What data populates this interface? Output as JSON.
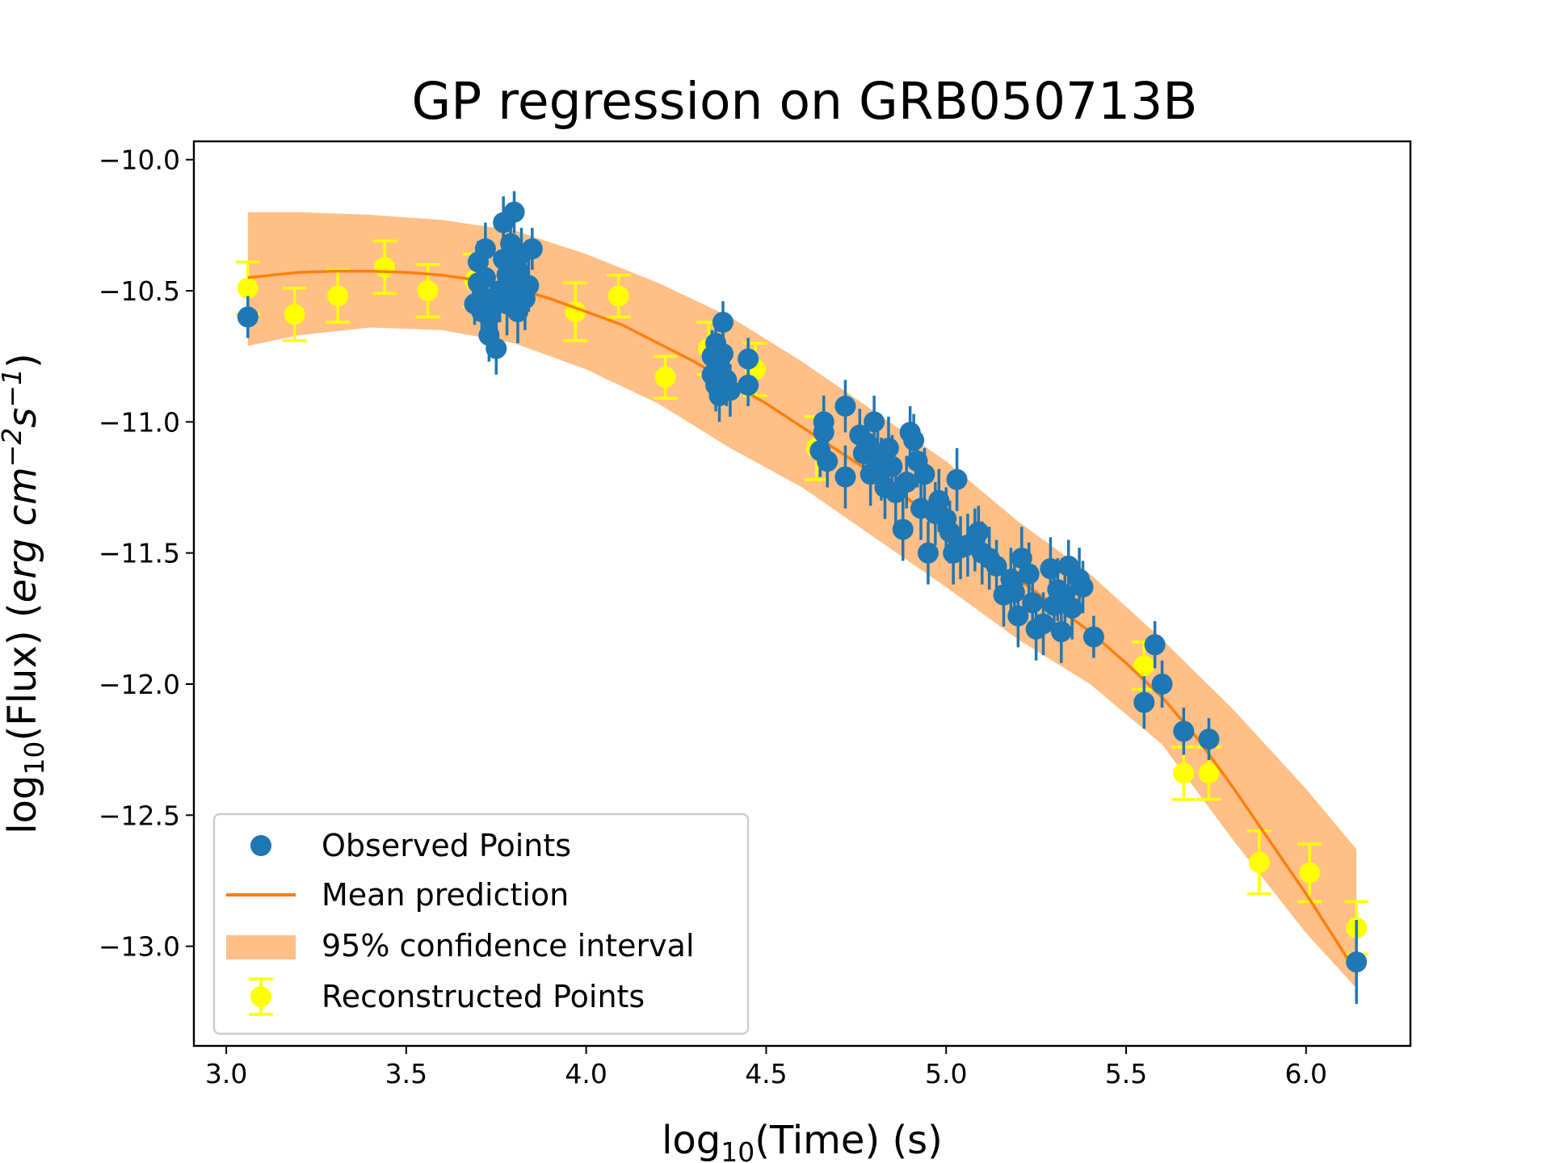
{
  "chart_data": {
    "type": "scatter",
    "title": "GP regression on GRB050713B",
    "xlabel": "log10(Time) (s)",
    "ylabel": "log10(Flux) (erg cm^-2 s^-1)",
    "xlabel_parts": {
      "pre": "log",
      "sub": "10",
      "post": "(Time) (s)"
    },
    "ylabel_parts": {
      "pre": "log",
      "sub": "10",
      "mid": "(Flux) (",
      "unit": "erg cm",
      "exp1": "−2",
      "s": "s",
      "exp2": "−1",
      "end": ")"
    },
    "xlim": [
      2.91,
      6.29
    ],
    "ylim": [
      -13.38,
      -9.93
    ],
    "xticks": [
      3.0,
      3.5,
      4.0,
      4.5,
      5.0,
      5.5,
      6.0
    ],
    "xtick_labels": [
      "3.0",
      "3.5",
      "4.0",
      "4.5",
      "5.0",
      "5.5",
      "6.0"
    ],
    "yticks": [
      -10.0,
      -10.5,
      -11.0,
      -11.5,
      -12.0,
      -12.5,
      -13.0
    ],
    "ytick_labels": [
      "−10.0",
      "−10.5",
      "−11.0",
      "−11.5",
      "−12.0",
      "−12.5",
      "−13.0"
    ],
    "legend_position": "lower-left",
    "colors": {
      "observed": "#1f77b4",
      "mean": "#ff7f0e",
      "band": "#ffbf86",
      "reconstructed": "#ffff00"
    },
    "series": [
      {
        "name": "Mean prediction",
        "kind": "line",
        "x": [
          3.06,
          3.2,
          3.3,
          3.4,
          3.5,
          3.6,
          3.7,
          3.8,
          3.9,
          4.0,
          4.1,
          4.2,
          4.3,
          4.4,
          4.5,
          4.6,
          4.7,
          4.8,
          4.9,
          5.0,
          5.1,
          5.2,
          5.3,
          5.4,
          5.5,
          5.6,
          5.7,
          5.8,
          5.9,
          6.0,
          6.14
        ],
        "y": [
          -10.45,
          -10.43,
          -10.425,
          -10.425,
          -10.43,
          -10.44,
          -10.46,
          -10.49,
          -10.53,
          -10.58,
          -10.63,
          -10.7,
          -10.77,
          -10.85,
          -10.93,
          -11.02,
          -11.11,
          -11.2,
          -11.3,
          -11.4,
          -11.5,
          -11.6,
          -11.7,
          -11.8,
          -11.92,
          -12.05,
          -12.21,
          -12.4,
          -12.6,
          -12.8,
          -13.1
        ]
      },
      {
        "name": "95% confidence interval",
        "kind": "band",
        "x": [
          3.06,
          3.2,
          3.4,
          3.6,
          3.8,
          4.0,
          4.2,
          4.4,
          4.6,
          4.8,
          5.0,
          5.2,
          5.4,
          5.6,
          5.8,
          6.0,
          6.14
        ],
        "upper": [
          -10.2,
          -10.2,
          -10.21,
          -10.23,
          -10.27,
          -10.36,
          -10.47,
          -10.6,
          -10.77,
          -10.96,
          -11.15,
          -11.38,
          -11.58,
          -11.83,
          -12.1,
          -12.4,
          -12.63
        ],
        "lower": [
          -10.71,
          -10.67,
          -10.64,
          -10.65,
          -10.7,
          -10.8,
          -10.93,
          -11.1,
          -11.25,
          -11.44,
          -11.63,
          -11.83,
          -12.0,
          -12.23,
          -12.6,
          -12.95,
          -13.16
        ]
      },
      {
        "name": "Reconstructed Points",
        "kind": "errorbar",
        "x": [
          3.06,
          3.19,
          3.31,
          3.44,
          3.56,
          3.69,
          3.97,
          4.09,
          4.22,
          4.34,
          4.47,
          4.64,
          5.55,
          5.66,
          5.73,
          5.87,
          6.01,
          6.14
        ],
        "y": [
          -10.49,
          -10.59,
          -10.52,
          -10.41,
          -10.5,
          -10.46,
          -10.58,
          -10.52,
          -10.83,
          -10.72,
          -10.8,
          -11.1,
          -11.93,
          -12.34,
          -12.34,
          -12.68,
          -12.72,
          -12.93
        ],
        "err": [
          0.1,
          0.1,
          0.1,
          0.1,
          0.1,
          0.1,
          0.11,
          0.08,
          0.08,
          0.1,
          0.1,
          0.12,
          0.09,
          0.1,
          0.1,
          0.12,
          0.11,
          0.1
        ]
      },
      {
        "name": "Observed Points",
        "kind": "errorbar",
        "x": [
          3.06,
          3.69,
          3.7,
          3.7,
          3.71,
          3.71,
          3.72,
          3.72,
          3.73,
          3.73,
          3.74,
          3.75,
          3.76,
          3.77,
          3.77,
          3.78,
          3.78,
          3.79,
          3.8,
          3.8,
          3.81,
          3.81,
          3.82,
          3.83,
          3.84,
          3.85,
          4.35,
          4.35,
          4.36,
          4.36,
          4.37,
          4.37,
          4.38,
          4.38,
          4.39,
          4.4,
          4.45,
          4.45,
          4.65,
          4.66,
          4.66,
          4.67,
          4.72,
          4.72,
          4.76,
          4.77,
          4.78,
          4.79,
          4.8,
          4.81,
          4.82,
          4.83,
          4.84,
          4.85,
          4.86,
          4.88,
          4.89,
          4.9,
          4.91,
          4.92,
          4.93,
          4.94,
          4.95,
          4.97,
          4.98,
          5.0,
          5.01,
          5.02,
          5.03,
          5.04,
          5.06,
          5.08,
          5.09,
          5.1,
          5.12,
          5.14,
          5.16,
          5.18,
          5.19,
          5.2,
          5.21,
          5.23,
          5.24,
          5.25,
          5.27,
          5.29,
          5.3,
          5.31,
          5.32,
          5.33,
          5.34,
          5.35,
          5.37,
          5.38,
          5.41,
          5.55,
          5.58,
          5.6,
          5.66,
          5.73,
          6.14
        ],
        "y": [
          -10.6,
          -10.55,
          -10.39,
          -10.47,
          -10.52,
          -10.58,
          -10.34,
          -10.45,
          -10.6,
          -10.67,
          -10.55,
          -10.72,
          -10.5,
          -10.38,
          -10.24,
          -10.44,
          -10.55,
          -10.32,
          -10.48,
          -10.2,
          -10.58,
          -10.42,
          -10.36,
          -10.53,
          -10.48,
          -10.34,
          -10.75,
          -10.82,
          -10.7,
          -10.86,
          -10.78,
          -10.9,
          -10.62,
          -10.74,
          -10.84,
          -10.88,
          -10.76,
          -10.86,
          -11.11,
          -11.0,
          -11.04,
          -11.15,
          -10.94,
          -11.21,
          -11.05,
          -11.12,
          -11.08,
          -11.2,
          -11.0,
          -11.14,
          -11.18,
          -11.25,
          -11.1,
          -11.17,
          -11.27,
          -11.41,
          -11.23,
          -11.04,
          -11.07,
          -11.15,
          -11.33,
          -11.2,
          -11.5,
          -11.35,
          -11.3,
          -11.37,
          -11.42,
          -11.5,
          -11.22,
          -11.48,
          -11.47,
          -11.45,
          -11.42,
          -11.5,
          -11.52,
          -11.55,
          -11.66,
          -11.6,
          -11.65,
          -11.74,
          -11.52,
          -11.58,
          -11.69,
          -11.79,
          -11.77,
          -11.56,
          -11.7,
          -11.64,
          -11.8,
          -11.66,
          -11.55,
          -11.71,
          -11.6,
          -11.63,
          -11.82,
          -12.07,
          -11.85,
          -12.0,
          -12.18,
          -12.21,
          -13.06
        ],
        "err": [
          0.08,
          0.08,
          0.08,
          0.09,
          0.1,
          0.1,
          0.1,
          0.1,
          0.1,
          0.1,
          0.1,
          0.1,
          0.12,
          0.12,
          0.1,
          0.12,
          0.12,
          0.1,
          0.12,
          0.08,
          0.12,
          0.12,
          0.1,
          0.12,
          0.1,
          0.08,
          0.1,
          0.1,
          0.1,
          0.1,
          0.1,
          0.1,
          0.08,
          0.1,
          0.1,
          0.1,
          0.08,
          0.08,
          0.1,
          0.1,
          0.1,
          0.1,
          0.1,
          0.12,
          0.1,
          0.1,
          0.1,
          0.12,
          0.1,
          0.12,
          0.12,
          0.12,
          0.12,
          0.12,
          0.12,
          0.12,
          0.1,
          0.1,
          0.1,
          0.1,
          0.12,
          0.1,
          0.12,
          0.12,
          0.12,
          0.12,
          0.12,
          0.12,
          0.12,
          0.12,
          0.12,
          0.12,
          0.1,
          0.12,
          0.12,
          0.1,
          0.12,
          0.12,
          0.12,
          0.12,
          0.12,
          0.12,
          0.12,
          0.12,
          0.12,
          0.12,
          0.12,
          0.12,
          0.12,
          0.12,
          0.1,
          0.12,
          0.12,
          0.1,
          0.08,
          0.1,
          0.09,
          0.09,
          0.09,
          0.08,
          0.16
        ]
      }
    ],
    "legend": [
      "Observed Points",
      "Mean prediction",
      "95% confidence interval",
      "Reconstructed Points"
    ]
  }
}
